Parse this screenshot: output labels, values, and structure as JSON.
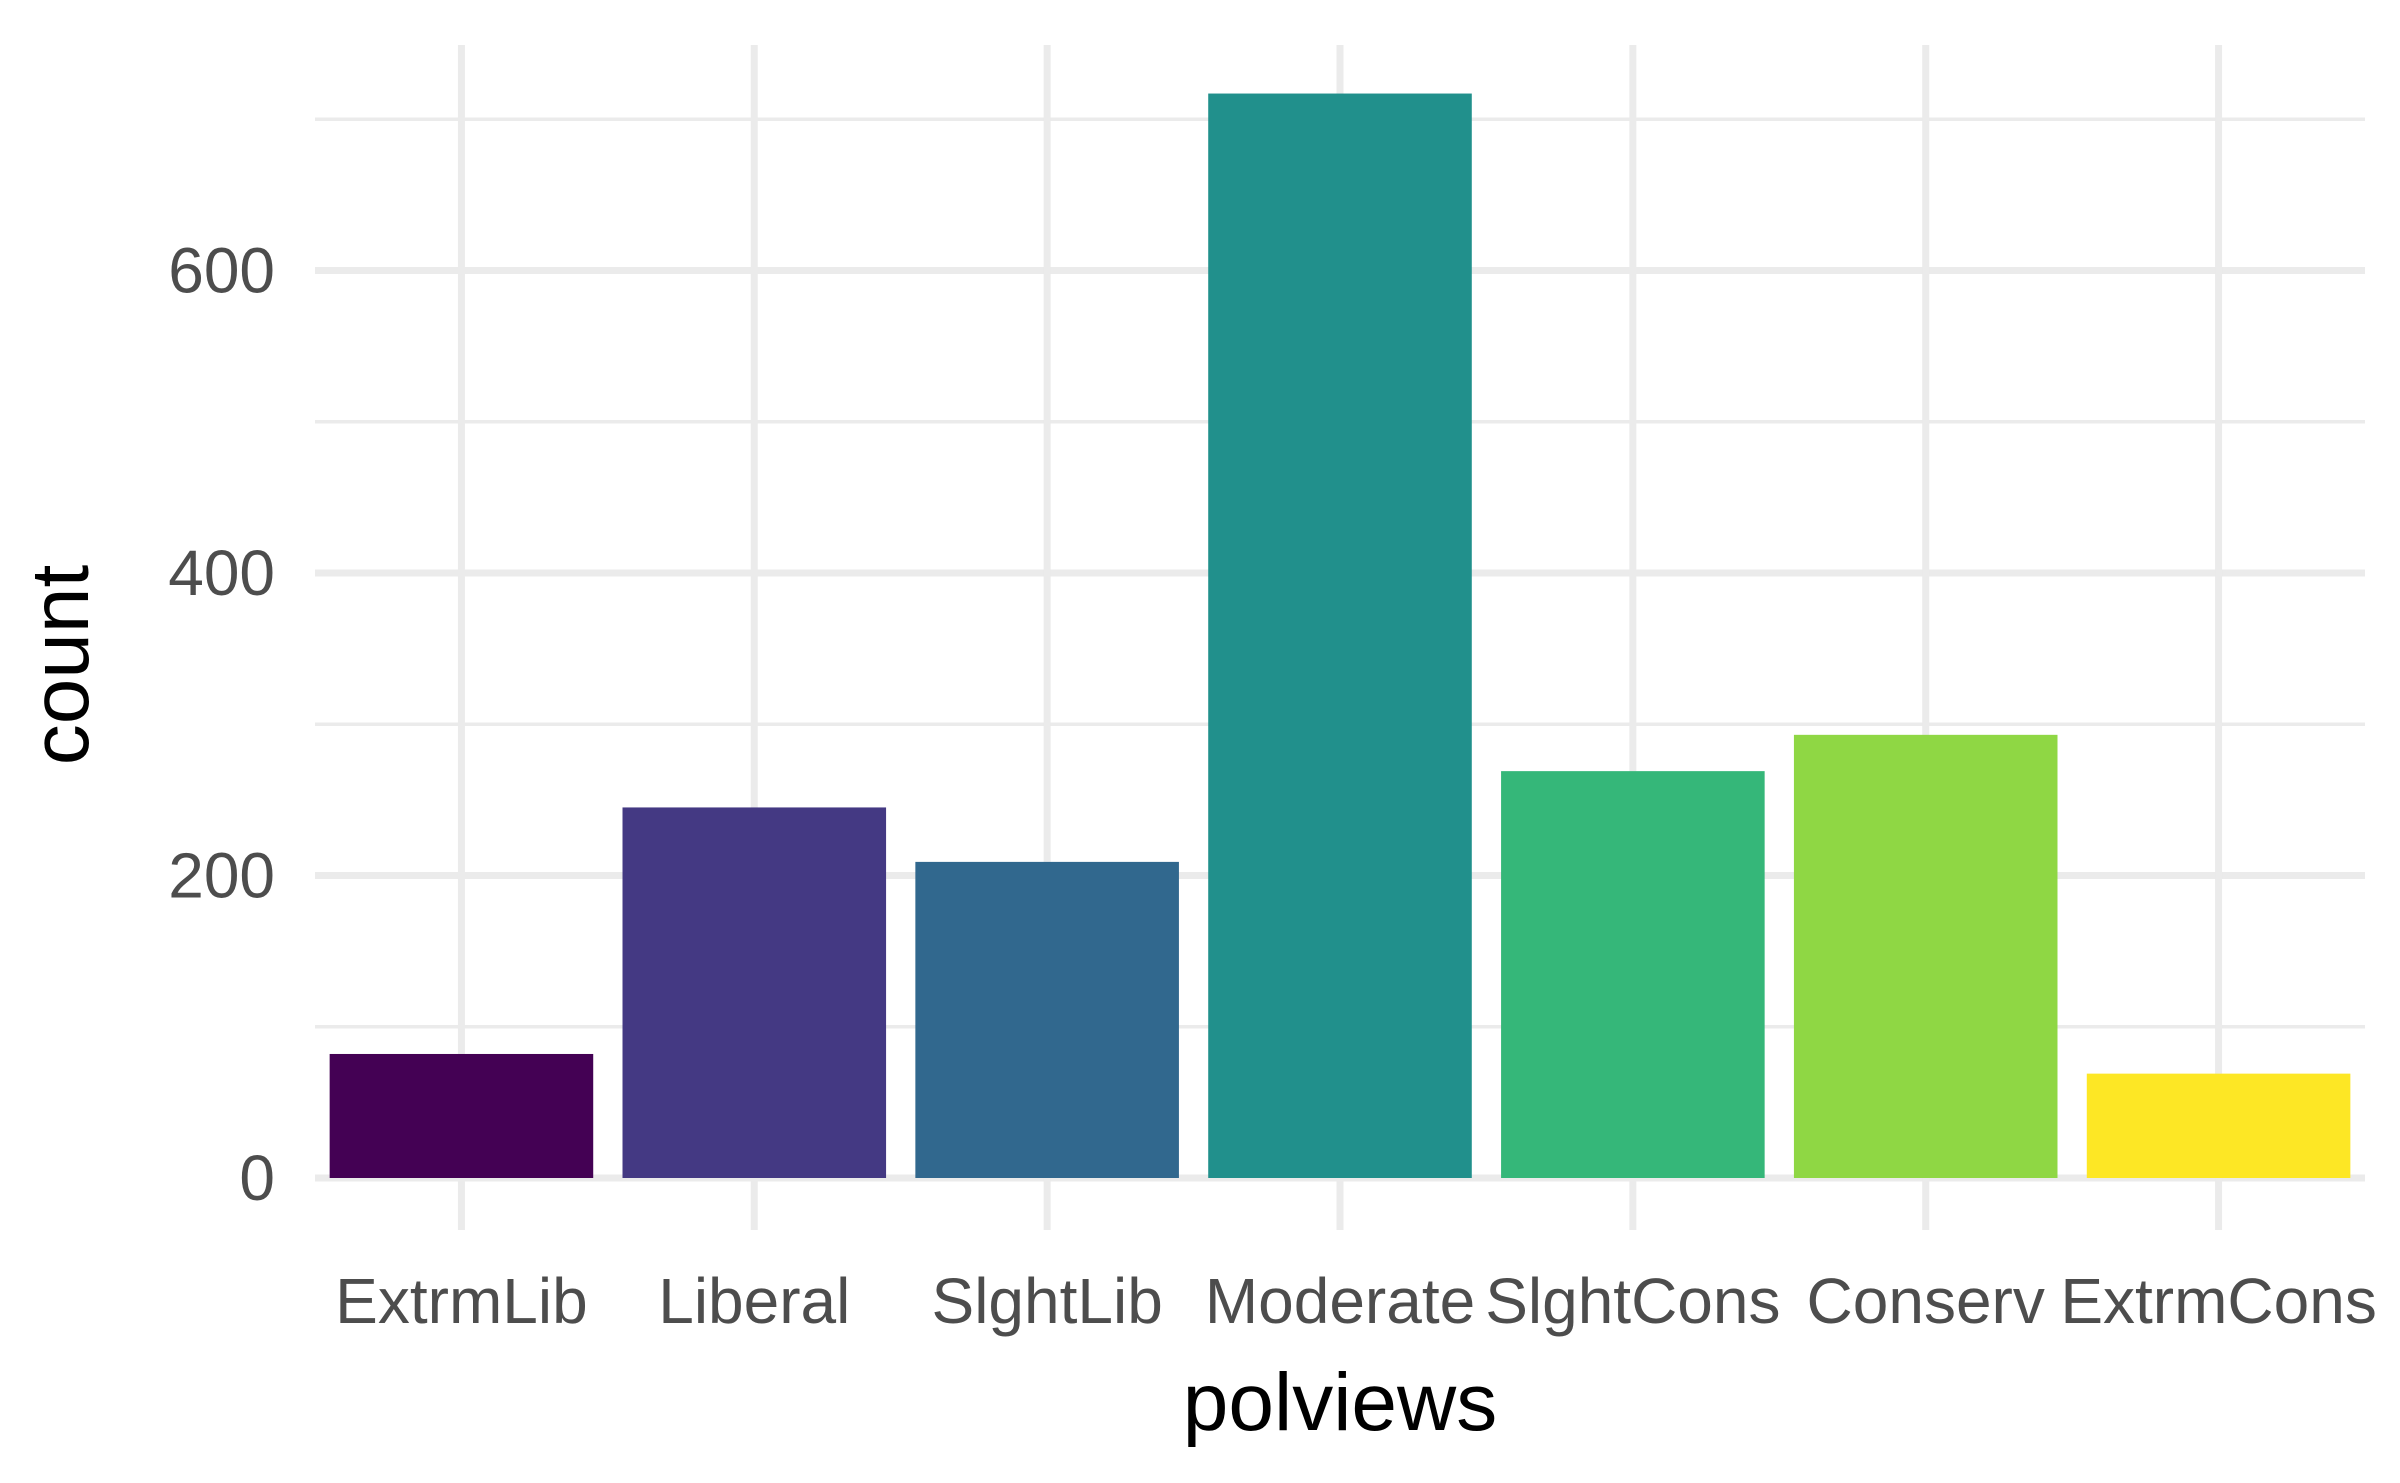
{
  "chart_data": {
    "type": "bar",
    "categories": [
      "ExtrmLib",
      "Liberal",
      "SlghtLib",
      "Moderate",
      "SlghtCons",
      "Conserv",
      "ExtrmCons"
    ],
    "values": [
      82,
      245,
      209,
      717,
      269,
      293,
      69
    ],
    "colors": [
      "#440154",
      "#443983",
      "#31688E",
      "#21908C",
      "#35B779",
      "#8FD744",
      "#FDE725"
    ],
    "title": "",
    "xlabel": "polviews",
    "ylabel": "count",
    "ylim": [
      0,
      750
    ],
    "yticks": [
      0,
      200,
      400,
      600
    ],
    "grid": true,
    "legend": "none"
  }
}
